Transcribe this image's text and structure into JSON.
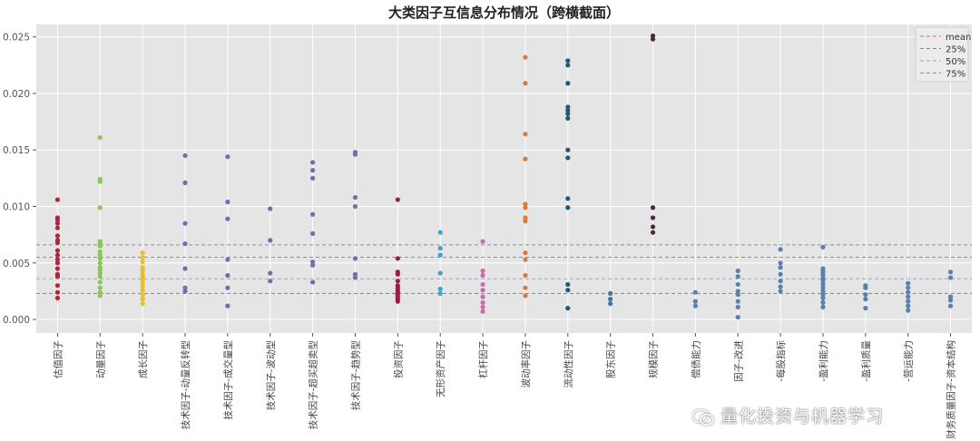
{
  "chart_data": {
    "type": "scatter",
    "title": "大类因子互信息分布情况（跨横截面）",
    "xlabel": "",
    "ylabel": "",
    "ylim": [
      -0.0012,
      0.0261
    ],
    "yticks": [
      0.0,
      0.005,
      0.01,
      0.015,
      0.02,
      0.025
    ],
    "ytick_labels": [
      "0.000",
      "0.005",
      "0.010",
      "0.015",
      "0.020",
      "0.025"
    ],
    "grid": true,
    "legend_position": "top-right",
    "reference_lines": [
      {
        "name": "mean",
        "value": 0.0055,
        "color": "#e8734a"
      },
      {
        "name": "25%",
        "value": 0.0023,
        "color": "#5b8fc9"
      },
      {
        "name": "50%",
        "value": 0.0036,
        "color": "#a99bd6"
      },
      {
        "name": "75%",
        "value": 0.0066,
        "color": "#9c8a8a"
      }
    ],
    "categories": [
      "估值因子",
      "动量因子",
      "成长因子",
      "技术因子-动量反转型",
      "技术因子-成交量型",
      "技术因子-波动型",
      "技术因子-超买超卖型",
      "技术因子-趋势型",
      "投资因子",
      "无形资产因子",
      "杠杆因子",
      "波动率因子",
      "流动性因子",
      "股东因子",
      "规模因子",
      "财务质量-偿债能力",
      "财务质量因子-改进",
      "财务质量因子-每股指标",
      "财务质量因子-盈利能力",
      "财务质量因子-盈利质量",
      "财务质量因子-营运能力",
      "财务质量因子-资本结构"
    ],
    "tick_labels": [
      "估值因子",
      "动量因子",
      "成长因子",
      "技术因子-动量反转型",
      "技术因子-成交量型",
      "技术因子-波动型",
      "技术因子-超买超卖型",
      "技术因子-趋势型",
      "投资因子",
      "无形资产因子",
      "杠杆因子",
      "波动率因子",
      "流动性因子",
      "股东因子",
      "规模因子",
      "偿债能力",
      "因子-改进",
      "-每股指标",
      "-盈利能力",
      "-盈利质量",
      "-营运能力",
      "财务质量因子-资本结构"
    ],
    "colors": [
      "#b5233b",
      "#8dc35a",
      "#e8c02b",
      "#7d67ad",
      "#7d67ad",
      "#7d67ad",
      "#7d67ad",
      "#7d67ad",
      "#9b1d45",
      "#3aa3d6",
      "#c86cb0",
      "#d97b3a",
      "#1f5a73",
      "#4a6fa8",
      "#4e2645",
      "#5b80b0",
      "#5b80b0",
      "#5b80b0",
      "#5b80b0",
      "#5b80b0",
      "#5b80b0",
      "#5b80b0"
    ],
    "series": [
      {
        "name": "估值因子",
        "values": [
          0.0106,
          0.009,
          0.0088,
          0.0085,
          0.0081,
          0.0074,
          0.007,
          0.0068,
          0.0061,
          0.0057,
          0.0053,
          0.005,
          0.0045,
          0.004,
          0.0038,
          0.003,
          0.0024,
          0.0019
        ]
      },
      {
        "name": "动量因子",
        "values": [
          0.0161,
          0.0124,
          0.0122,
          0.0099,
          0.0069,
          0.0067,
          0.0065,
          0.006,
          0.0057,
          0.0054,
          0.005,
          0.0046,
          0.0044,
          0.0041,
          0.0038,
          0.0033,
          0.0028,
          0.0024,
          0.0021
        ]
      },
      {
        "name": "成长因子",
        "values": [
          0.0059,
          0.0055,
          0.0051,
          0.0046,
          0.0043,
          0.004,
          0.0038,
          0.0035,
          0.0032,
          0.0029,
          0.0026,
          0.0022,
          0.0018,
          0.0014
        ]
      },
      {
        "name": "技术因子-动量反转型",
        "values": [
          0.0145,
          0.0121,
          0.0085,
          0.0067,
          0.0045,
          0.0028,
          0.0025
        ]
      },
      {
        "name": "技术因子-成交量型",
        "values": [
          0.0144,
          0.0104,
          0.0089,
          0.0053,
          0.0039,
          0.0028,
          0.0012
        ]
      },
      {
        "name": "技术因子-波动型",
        "values": [
          0.0098,
          0.007,
          0.0041,
          0.0034
        ]
      },
      {
        "name": "技术因子-超买超卖型",
        "values": [
          0.0139,
          0.0132,
          0.0125,
          0.0093,
          0.0076,
          0.0051,
          0.0048,
          0.0033
        ]
      },
      {
        "name": "技术因子-趋势型",
        "values": [
          0.0148,
          0.0146,
          0.0108,
          0.01,
          0.0054,
          0.004,
          0.0037
        ]
      },
      {
        "name": "投资因子",
        "values": [
          0.0106,
          0.0054,
          0.0042,
          0.004,
          0.0034,
          0.003,
          0.0028,
          0.0026,
          0.0024,
          0.0022,
          0.002,
          0.0018,
          0.0016
        ]
      },
      {
        "name": "无形资产因子",
        "values": [
          0.0077,
          0.0063,
          0.0057,
          0.0041,
          0.0027,
          0.0023
        ]
      },
      {
        "name": "杠杆因子",
        "values": [
          0.0069,
          0.0043,
          0.0039,
          0.0031,
          0.0026,
          0.002,
          0.0015,
          0.0011,
          0.0007
        ]
      },
      {
        "name": "波动率因子",
        "values": [
          0.0232,
          0.0209,
          0.0164,
          0.0142,
          0.0102,
          0.0099,
          0.009,
          0.0087,
          0.0059,
          0.0053,
          0.0039,
          0.0028,
          0.0021
        ]
      },
      {
        "name": "流动性因子",
        "values": [
          0.0229,
          0.0225,
          0.0209,
          0.0188,
          0.0185,
          0.0182,
          0.0178,
          0.015,
          0.0143,
          0.0107,
          0.0099,
          0.0031,
          0.0026,
          0.001
        ]
      },
      {
        "name": "股东因子",
        "values": [
          0.0023,
          0.0018,
          0.0014
        ]
      },
      {
        "name": "规模因子",
        "values": [
          0.0251,
          0.0248,
          0.0099,
          0.009,
          0.0082,
          0.0077
        ]
      },
      {
        "name": "财务质量-偿债能力",
        "values": [
          0.0024,
          0.0016,
          0.0012
        ]
      },
      {
        "name": "财务质量因子-改进",
        "values": [
          0.0043,
          0.0038,
          0.0031,
          0.0025,
          0.0022,
          0.0016,
          0.0011,
          0.0002
        ]
      },
      {
        "name": "财务质量因子-每股指标",
        "values": [
          0.0062,
          0.005,
          0.0046,
          0.004,
          0.0034,
          0.0029,
          0.0025
        ]
      },
      {
        "name": "财务质量因子-盈利能力",
        "values": [
          0.0064,
          0.0045,
          0.0043,
          0.0041,
          0.0039,
          0.0036,
          0.0034,
          0.0031,
          0.0028,
          0.0025,
          0.0022,
          0.0019,
          0.0015,
          0.0011
        ]
      },
      {
        "name": "财务质量因子-盈利质量",
        "values": [
          0.003,
          0.0028,
          0.0022,
          0.0018,
          0.001
        ]
      },
      {
        "name": "财务质量因子-营运能力",
        "values": [
          0.0032,
          0.0028,
          0.0024,
          0.002,
          0.0016,
          0.0012,
          0.0008
        ]
      },
      {
        "name": "财务质量因子-资本结构",
        "values": [
          0.0042,
          0.0037,
          0.002,
          0.0017,
          0.0012
        ]
      }
    ]
  },
  "watermark": {
    "text": "量化投资与机器学习",
    "icon": "wechat-logo-icon"
  }
}
